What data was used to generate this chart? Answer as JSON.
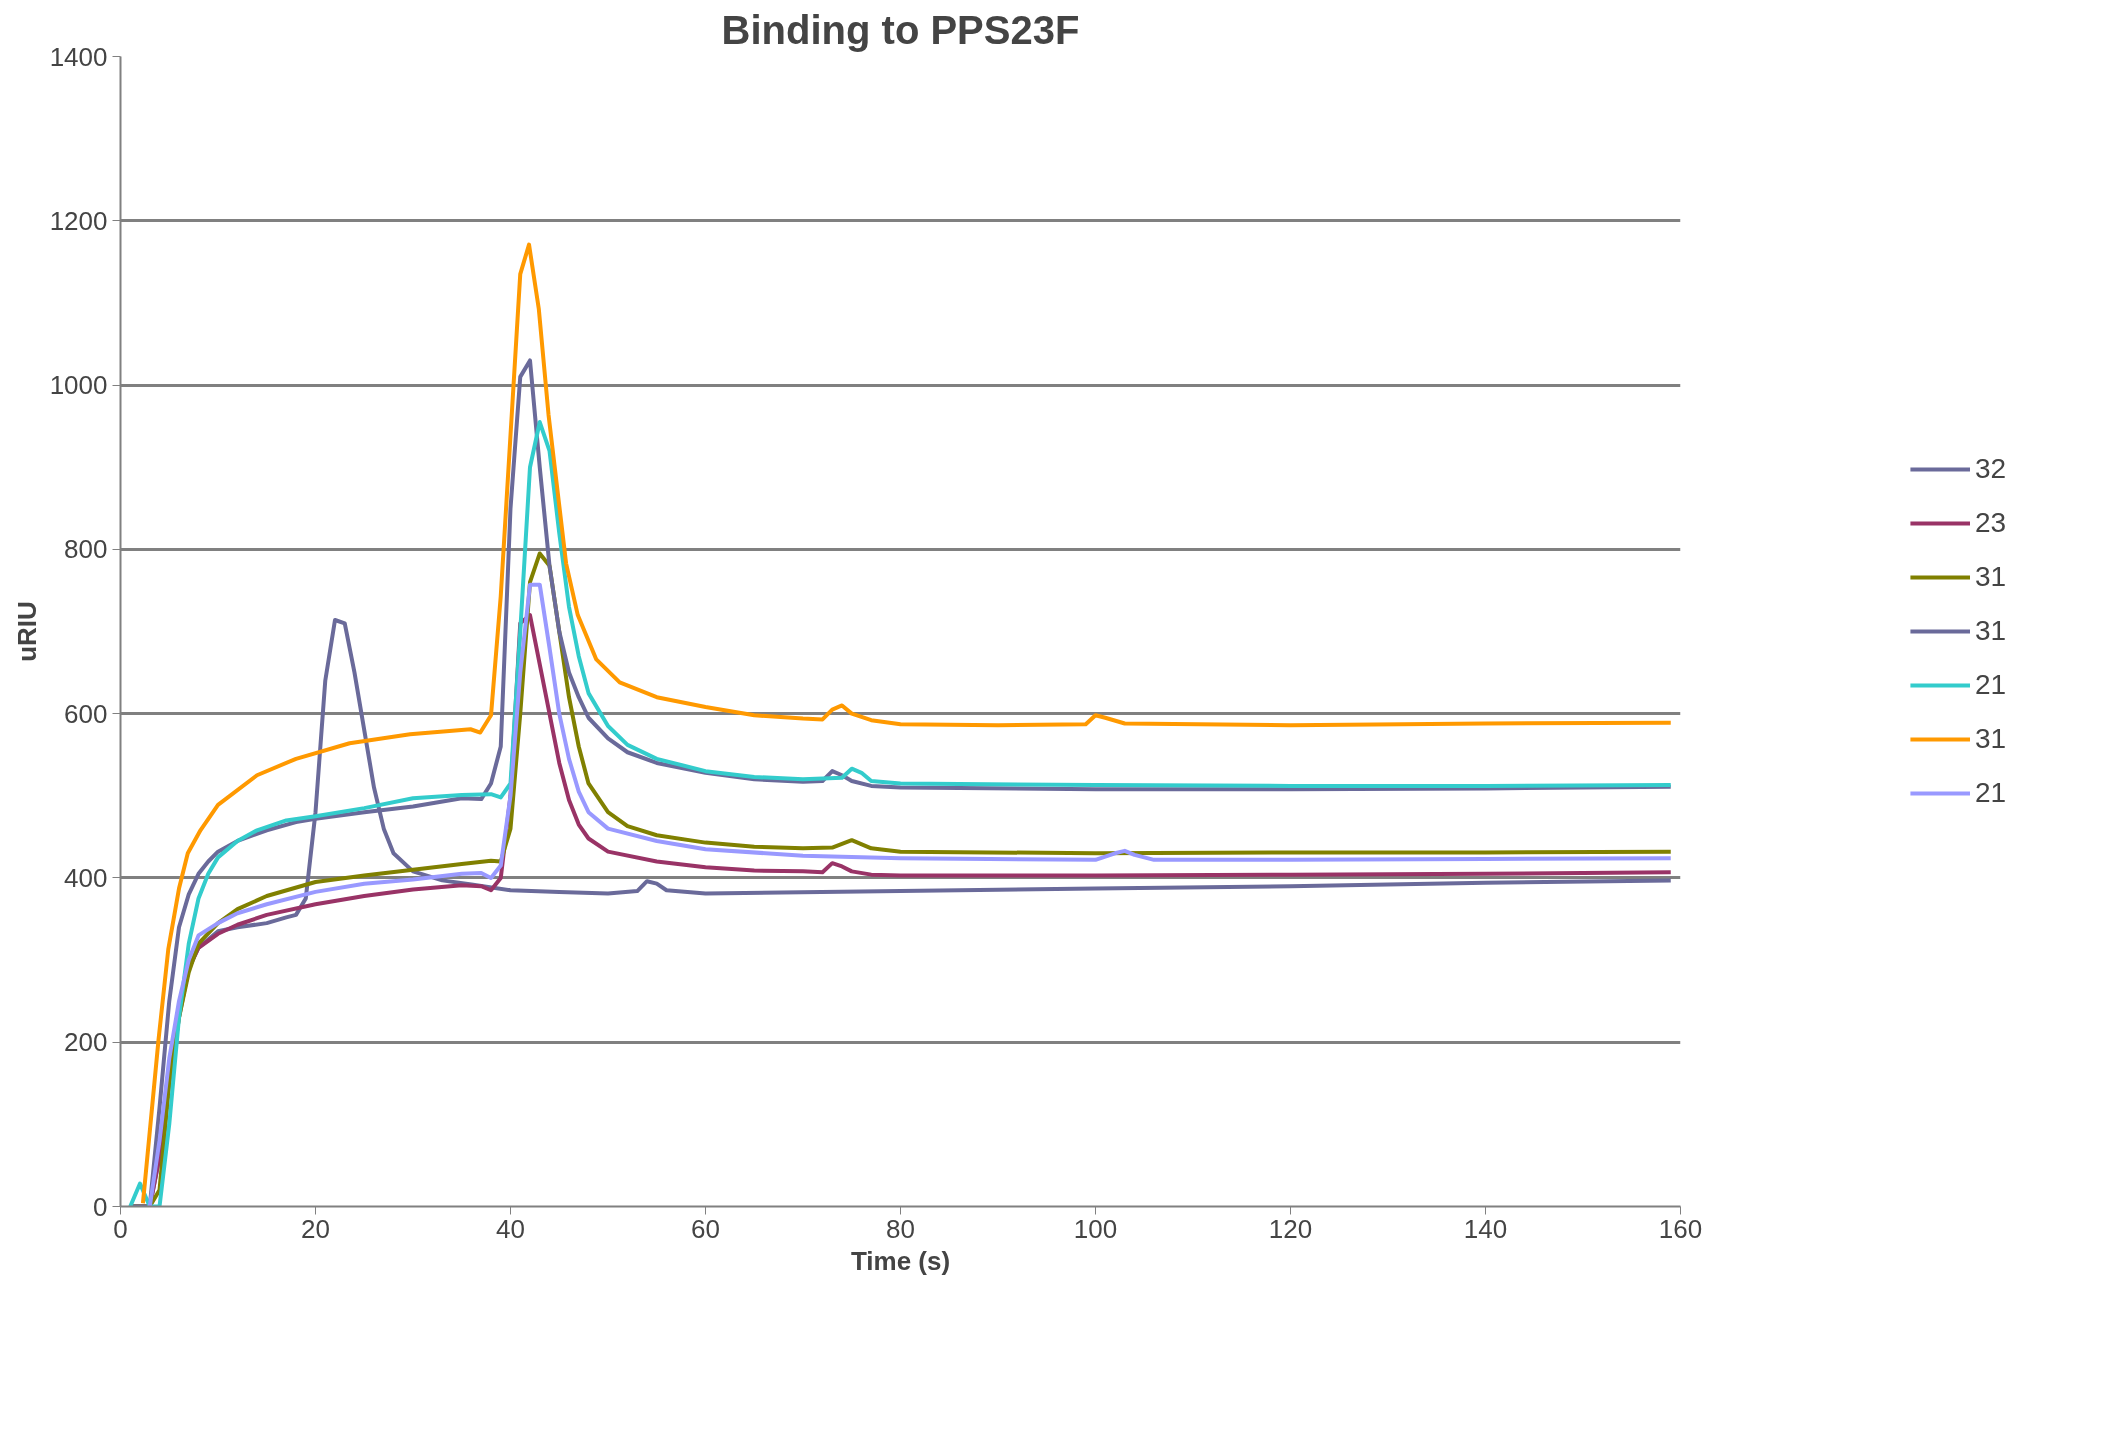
{
  "chart_data": {
    "type": "line",
    "title": "Binding to PPS23F",
    "xlabel": "Time (s)",
    "ylabel": "uRIU",
    "xlim": [
      0,
      160
    ],
    "xticks": [
      0,
      20,
      40,
      60,
      80,
      100,
      120,
      140,
      160
    ],
    "ylim": [
      0,
      1400
    ],
    "yticks": [
      0,
      200,
      400,
      600,
      800,
      1000,
      1200,
      1400
    ],
    "grid": "y",
    "legend": "right",
    "line_style": "solid",
    "series": [
      {
        "name": "32",
        "color": "#6a6a9a",
        "x": [
          1,
          3,
          4,
          5,
          6,
          7,
          8,
          10,
          12,
          15,
          17,
          18,
          19,
          20,
          21,
          22,
          23,
          24,
          25,
          26,
          27,
          28,
          30,
          33,
          36,
          40,
          45,
          50,
          53,
          54,
          55,
          56,
          60,
          80,
          100,
          120,
          140,
          159
        ],
        "values": [
          0,
          0,
          60,
          150,
          230,
          290,
          315,
          335,
          340,
          345,
          352,
          355,
          375,
          480,
          640,
          714,
          710,
          650,
          580,
          510,
          460,
          430,
          408,
          397,
          392,
          385,
          383,
          381,
          384,
          396,
          393,
          385,
          381,
          384,
          387,
          390,
          394,
          397
        ]
      },
      {
        "name": "23",
        "color": "#993366",
        "x": [
          1,
          3,
          4,
          5,
          6,
          7,
          8,
          10,
          12,
          15,
          20,
          25,
          30,
          35,
          37,
          38,
          39,
          40,
          41,
          42,
          43,
          44,
          45,
          46,
          47,
          48,
          50,
          55,
          60,
          65,
          70,
          72,
          73,
          74,
          75,
          77,
          80,
          100,
          120,
          140,
          159
        ],
        "values": [
          0,
          0,
          60,
          170,
          240,
          290,
          315,
          332,
          343,
          355,
          368,
          378,
          386,
          391,
          390,
          385,
          400,
          500,
          710,
          720,
          660,
          600,
          540,
          495,
          465,
          448,
          432,
          420,
          413,
          409,
          408,
          407,
          418,
          414,
          408,
          404,
          403,
          403,
          404,
          405,
          407
        ]
      },
      {
        "name": "31",
        "color": "#808000",
        "x": [
          1,
          3,
          4,
          5,
          6,
          7,
          8,
          10,
          12,
          15,
          20,
          25,
          30,
          35,
          38,
          39,
          40,
          41,
          42,
          43,
          44,
          45,
          46,
          47,
          48,
          50,
          52,
          55,
          60,
          65,
          70,
          73,
          75,
          77,
          80,
          100,
          120,
          140,
          159
        ],
        "values": [
          0,
          0,
          20,
          150,
          230,
          285,
          320,
          345,
          362,
          378,
          395,
          403,
          410,
          417,
          421,
          420,
          460,
          600,
          760,
          795,
          780,
          700,
          620,
          560,
          515,
          480,
          463,
          452,
          443,
          438,
          436,
          437,
          446,
          436,
          432,
          430,
          431,
          431,
          432
        ]
      },
      {
        "name": "31",
        "color": "#6a6a9a",
        "x": [
          1,
          3,
          4,
          5,
          6,
          7,
          8,
          9,
          10,
          12,
          15,
          18,
          20,
          25,
          30,
          35,
          37,
          38,
          39,
          40,
          41,
          42,
          43,
          44,
          45,
          46,
          47,
          48,
          50,
          52,
          55,
          60,
          65,
          70,
          72,
          73,
          74,
          75,
          77,
          80,
          100,
          120,
          140,
          159
        ],
        "values": [
          0,
          0,
          120,
          250,
          340,
          380,
          405,
          420,
          432,
          445,
          458,
          468,
          472,
          480,
          487,
          497,
          496,
          515,
          560,
          850,
          1010,
          1030,
          900,
          780,
          700,
          650,
          620,
          595,
          570,
          553,
          540,
          528,
          520,
          517,
          518,
          530,
          525,
          518,
          512,
          510,
          508,
          508,
          509,
          511
        ]
      },
      {
        "name": "21",
        "color": "#33cccc",
        "x": [
          1,
          2,
          3,
          4,
          5,
          6,
          7,
          8,
          9,
          10,
          12,
          14,
          17,
          20,
          25,
          30,
          35,
          38,
          39,
          40,
          41,
          42,
          43,
          44,
          45,
          46,
          47,
          48,
          50,
          52,
          55,
          60,
          65,
          70,
          74,
          75,
          76,
          77,
          80,
          100,
          120,
          140,
          159
        ],
        "values": [
          0,
          28,
          0,
          0,
          100,
          230,
          320,
          375,
          405,
          425,
          445,
          458,
          470,
          475,
          485,
          497,
          501,
          502,
          498,
          515,
          700,
          900,
          955,
          920,
          820,
          730,
          670,
          625,
          585,
          562,
          545,
          530,
          523,
          520,
          522,
          533,
          528,
          518,
          515,
          513,
          512,
          512,
          513
        ]
      },
      {
        "name": "31",
        "color": "#ff9900",
        "x": [
          2.3,
          3.9,
          4.9,
          6,
          6.9,
          8.2,
          10,
          14,
          18,
          23.5,
          29.7,
          35.9,
          36.9,
          38,
          39,
          41,
          41.9,
          42.9,
          43.9,
          45.7,
          46.9,
          48.8,
          51.2,
          55,
          60,
          65,
          70,
          72,
          73,
          74,
          75,
          77,
          80,
          90,
          99,
          100,
          101,
          103,
          120,
          140,
          159
        ],
        "values": [
          4,
          203,
          313,
          387,
          430,
          458,
          489,
          525,
          545,
          564,
          575,
          581,
          577,
          598,
          743,
          1135,
          1171,
          1093,
          964,
          783,
          720,
          666,
          638,
          620,
          608,
          598,
          594,
          593,
          605,
          610,
          600,
          592,
          587,
          586,
          587,
          598,
          595,
          588,
          586,
          588,
          589
        ]
      },
      {
        "name": "21",
        "color": "#9999ff",
        "x": [
          3,
          4,
          5,
          6,
          7,
          8,
          10,
          12,
          15,
          20,
          25,
          30,
          35,
          37,
          38,
          39,
          40,
          41,
          42,
          43,
          44,
          45,
          46,
          47,
          48,
          50,
          55,
          60,
          70,
          80,
          100,
          102,
          103,
          104,
          106,
          120,
          140,
          159
        ],
        "values": [
          0,
          80,
          180,
          250,
          300,
          330,
          345,
          357,
          368,
          383,
          393,
          398,
          405,
          406,
          400,
          415,
          500,
          650,
          757,
          757,
          680,
          600,
          545,
          505,
          480,
          460,
          445,
          435,
          427,
          424,
          422,
          430,
          433,
          428,
          422,
          422,
          423,
          424
        ]
      }
    ]
  }
}
